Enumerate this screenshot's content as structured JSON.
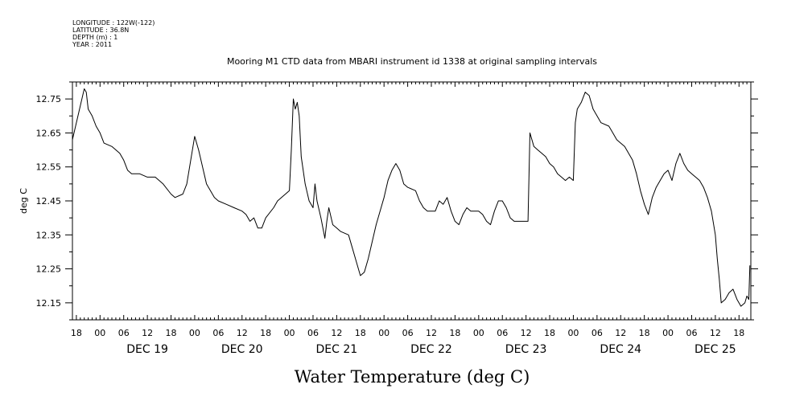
{
  "header": {
    "lines": [
      "LONGITUDE : 122W(-122)",
      "LATITUDE : 36.8N",
      "DEPTH (m) : 1",
      "YEAR : 2011"
    ]
  },
  "chart_data": {
    "type": "line",
    "title": "Mooring M1 CTD data from MBARI instrument id 1338 at original sampling intervals",
    "xlabel": "Water Temperature (deg C)",
    "ylabel": "deg C",
    "xlim": [
      "2011-12-18T17:00",
      "2011-12-25T21:00"
    ],
    "ylim": [
      12.1,
      12.8
    ],
    "yticks": [
      "12.15",
      "12.25",
      "12.35",
      "12.45",
      "12.55",
      "12.65",
      "12.75"
    ],
    "hour_ticks": [
      "00",
      "06",
      "12",
      "18"
    ],
    "day_labels": [
      {
        "label": "DEC 19",
        "date": "2011-12-19"
      },
      {
        "label": "DEC 20",
        "date": "2011-12-20"
      },
      {
        "label": "DEC 21",
        "date": "2011-12-21"
      },
      {
        "label": "DEC 22",
        "date": "2011-12-22"
      },
      {
        "label": "DEC 23",
        "date": "2011-12-23"
      },
      {
        "label": "DEC 24",
        "date": "2011-12-24"
      },
      {
        "label": "DEC 25",
        "date": "2011-12-25"
      }
    ],
    "grid": false,
    "color": "#000000",
    "series": [
      {
        "points": [
          [
            "2011-12-18T17:00",
            12.63
          ],
          [
            "2011-12-18T18:00",
            12.68
          ],
          [
            "2011-12-18T19:00",
            12.73
          ],
          [
            "2011-12-18T20:00",
            12.78
          ],
          [
            "2011-12-18T20:30",
            12.77
          ],
          [
            "2011-12-18T21:00",
            12.72
          ],
          [
            "2011-12-18T22:00",
            12.7
          ],
          [
            "2011-12-18T23:00",
            12.67
          ],
          [
            "2011-12-19T00:00",
            12.65
          ],
          [
            "2011-12-19T01:00",
            12.62
          ],
          [
            "2011-12-19T03:00",
            12.61
          ],
          [
            "2011-12-19T05:00",
            12.59
          ],
          [
            "2011-12-19T06:00",
            12.57
          ],
          [
            "2011-12-19T07:00",
            12.54
          ],
          [
            "2011-12-19T08:00",
            12.53
          ],
          [
            "2011-12-19T10:00",
            12.53
          ],
          [
            "2011-12-19T12:00",
            12.52
          ],
          [
            "2011-12-19T14:00",
            12.52
          ],
          [
            "2011-12-19T16:00",
            12.5
          ],
          [
            "2011-12-19T18:00",
            12.47
          ],
          [
            "2011-12-19T19:00",
            12.46
          ],
          [
            "2011-12-19T21:00",
            12.47
          ],
          [
            "2011-12-19T22:00",
            12.5
          ],
          [
            "2011-12-19T23:00",
            12.57
          ],
          [
            "2011-12-20T00:00",
            12.64
          ],
          [
            "2011-12-20T01:00",
            12.6
          ],
          [
            "2011-12-20T02:00",
            12.55
          ],
          [
            "2011-12-20T03:00",
            12.5
          ],
          [
            "2011-12-20T05:00",
            12.46
          ],
          [
            "2011-12-20T06:00",
            12.45
          ],
          [
            "2011-12-20T08:00",
            12.44
          ],
          [
            "2011-12-20T10:00",
            12.43
          ],
          [
            "2011-12-20T12:00",
            12.42
          ],
          [
            "2011-12-20T13:00",
            12.41
          ],
          [
            "2011-12-20T14:00",
            12.39
          ],
          [
            "2011-12-20T15:00",
            12.4
          ],
          [
            "2011-12-20T16:00",
            12.37
          ],
          [
            "2011-12-20T17:00",
            12.37
          ],
          [
            "2011-12-20T18:00",
            12.4
          ],
          [
            "2011-12-20T20:00",
            12.43
          ],
          [
            "2011-12-20T21:00",
            12.45
          ],
          [
            "2011-12-20T22:00",
            12.46
          ],
          [
            "2011-12-20T23:00",
            12.47
          ],
          [
            "2011-12-21T00:00",
            12.48
          ],
          [
            "2011-12-21T00:30",
            12.6
          ],
          [
            "2011-12-21T01:00",
            12.75
          ],
          [
            "2011-12-21T01:30",
            12.72
          ],
          [
            "2011-12-21T02:00",
            12.74
          ],
          [
            "2011-12-21T02:30",
            12.7
          ],
          [
            "2011-12-21T03:00",
            12.58
          ],
          [
            "2011-12-21T04:00",
            12.5
          ],
          [
            "2011-12-21T05:00",
            12.45
          ],
          [
            "2011-12-21T06:00",
            12.43
          ],
          [
            "2011-12-21T06:30",
            12.5
          ],
          [
            "2011-12-21T07:00",
            12.45
          ],
          [
            "2011-12-21T08:00",
            12.4
          ],
          [
            "2011-12-21T09:00",
            12.34
          ],
          [
            "2011-12-21T09:30",
            12.39
          ],
          [
            "2011-12-21T10:00",
            12.43
          ],
          [
            "2011-12-21T11:00",
            12.38
          ],
          [
            "2011-12-21T12:00",
            12.37
          ],
          [
            "2011-12-21T13:00",
            12.36
          ],
          [
            "2011-12-21T15:00",
            12.35
          ],
          [
            "2011-12-21T16:00",
            12.31
          ],
          [
            "2011-12-21T17:00",
            12.27
          ],
          [
            "2011-12-21T18:00",
            12.23
          ],
          [
            "2011-12-21T19:00",
            12.24
          ],
          [
            "2011-12-21T20:00",
            12.28
          ],
          [
            "2011-12-21T21:00",
            12.33
          ],
          [
            "2011-12-21T22:00",
            12.38
          ],
          [
            "2011-12-22T00:00",
            12.46
          ],
          [
            "2011-12-22T01:00",
            12.51
          ],
          [
            "2011-12-22T02:00",
            12.54
          ],
          [
            "2011-12-22T03:00",
            12.56
          ],
          [
            "2011-12-22T04:00",
            12.54
          ],
          [
            "2011-12-22T05:00",
            12.5
          ],
          [
            "2011-12-22T06:00",
            12.49
          ],
          [
            "2011-12-22T08:00",
            12.48
          ],
          [
            "2011-12-22T09:00",
            12.45
          ],
          [
            "2011-12-22T10:00",
            12.43
          ],
          [
            "2011-12-22T11:00",
            12.42
          ],
          [
            "2011-12-22T13:00",
            12.42
          ],
          [
            "2011-12-22T14:00",
            12.45
          ],
          [
            "2011-12-22T15:00",
            12.44
          ],
          [
            "2011-12-22T16:00",
            12.46
          ],
          [
            "2011-12-22T17:00",
            12.42
          ],
          [
            "2011-12-22T18:00",
            12.39
          ],
          [
            "2011-12-22T19:00",
            12.38
          ],
          [
            "2011-12-22T20:00",
            12.41
          ],
          [
            "2011-12-22T21:00",
            12.43
          ],
          [
            "2011-12-22T22:00",
            12.42
          ],
          [
            "2011-12-23T00:00",
            12.42
          ],
          [
            "2011-12-23T01:00",
            12.41
          ],
          [
            "2011-12-23T02:00",
            12.39
          ],
          [
            "2011-12-23T03:00",
            12.38
          ],
          [
            "2011-12-23T04:00",
            12.42
          ],
          [
            "2011-12-23T05:00",
            12.45
          ],
          [
            "2011-12-23T06:00",
            12.45
          ],
          [
            "2011-12-23T07:00",
            12.43
          ],
          [
            "2011-12-23T08:00",
            12.4
          ],
          [
            "2011-12-23T09:00",
            12.39
          ],
          [
            "2011-12-23T10:00",
            12.39
          ],
          [
            "2011-12-23T12:00",
            12.39
          ],
          [
            "2011-12-23T12:30",
            12.39
          ],
          [
            "2011-12-23T13:00",
            12.65
          ],
          [
            "2011-12-23T14:00",
            12.61
          ],
          [
            "2011-12-23T15:00",
            12.6
          ],
          [
            "2011-12-23T16:00",
            12.59
          ],
          [
            "2011-12-23T17:00",
            12.58
          ],
          [
            "2011-12-23T18:00",
            12.56
          ],
          [
            "2011-12-23T19:00",
            12.55
          ],
          [
            "2011-12-23T20:00",
            12.53
          ],
          [
            "2011-12-23T21:00",
            12.52
          ],
          [
            "2011-12-23T22:00",
            12.51
          ],
          [
            "2011-12-23T23:00",
            12.52
          ],
          [
            "2011-12-24T00:00",
            12.51
          ],
          [
            "2011-12-24T00:30",
            12.68
          ],
          [
            "2011-12-24T01:00",
            12.72
          ],
          [
            "2011-12-24T02:00",
            12.74
          ],
          [
            "2011-12-24T03:00",
            12.77
          ],
          [
            "2011-12-24T04:00",
            12.76
          ],
          [
            "2011-12-24T05:00",
            12.72
          ],
          [
            "2011-12-24T06:00",
            12.7
          ],
          [
            "2011-12-24T07:00",
            12.68
          ],
          [
            "2011-12-24T09:00",
            12.67
          ],
          [
            "2011-12-24T10:00",
            12.65
          ],
          [
            "2011-12-24T11:00",
            12.63
          ],
          [
            "2011-12-24T12:00",
            12.62
          ],
          [
            "2011-12-24T13:00",
            12.61
          ],
          [
            "2011-12-24T14:00",
            12.59
          ],
          [
            "2011-12-24T15:00",
            12.57
          ],
          [
            "2011-12-24T16:00",
            12.53
          ],
          [
            "2011-12-24T17:00",
            12.48
          ],
          [
            "2011-12-24T18:00",
            12.44
          ],
          [
            "2011-12-24T19:00",
            12.41
          ],
          [
            "2011-12-24T20:00",
            12.46
          ],
          [
            "2011-12-24T21:00",
            12.49
          ],
          [
            "2011-12-24T22:00",
            12.51
          ],
          [
            "2011-12-24T23:00",
            12.53
          ],
          [
            "2011-12-25T00:00",
            12.54
          ],
          [
            "2011-12-25T01:00",
            12.51
          ],
          [
            "2011-12-25T02:00",
            12.56
          ],
          [
            "2011-12-25T03:00",
            12.59
          ],
          [
            "2011-12-25T04:00",
            12.56
          ],
          [
            "2011-12-25T05:00",
            12.54
          ],
          [
            "2011-12-25T06:00",
            12.53
          ],
          [
            "2011-12-25T07:00",
            12.52
          ],
          [
            "2011-12-25T08:00",
            12.51
          ],
          [
            "2011-12-25T09:00",
            12.49
          ],
          [
            "2011-12-25T10:00",
            12.46
          ],
          [
            "2011-12-25T11:00",
            12.42
          ],
          [
            "2011-12-25T12:00",
            12.35
          ],
          [
            "2011-12-25T12:30",
            12.28
          ],
          [
            "2011-12-25T13:00",
            12.22
          ],
          [
            "2011-12-25T13:30",
            12.15
          ],
          [
            "2011-12-25T14:30",
            12.16
          ],
          [
            "2011-12-25T15:30",
            12.18
          ],
          [
            "2011-12-25T16:30",
            12.19
          ],
          [
            "2011-12-25T17:30",
            12.16
          ],
          [
            "2011-12-25T18:30",
            12.14
          ],
          [
            "2011-12-25T19:30",
            12.15
          ],
          [
            "2011-12-25T20:00",
            12.17
          ],
          [
            "2011-12-25T20:30",
            12.16
          ],
          [
            "2011-12-25T20:45",
            12.26
          ]
        ]
      }
    ]
  }
}
